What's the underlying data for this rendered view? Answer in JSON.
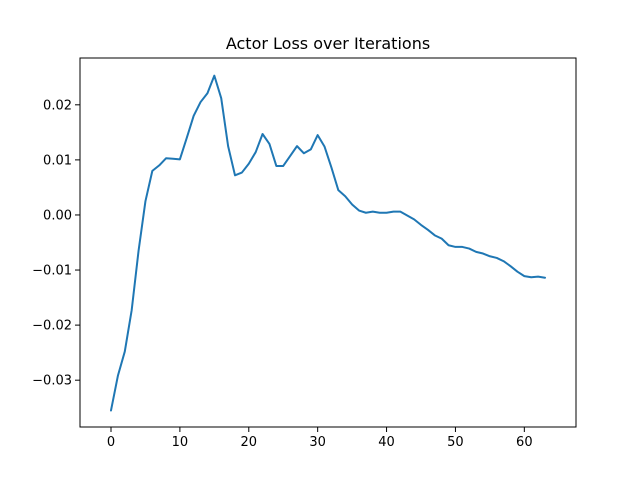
{
  "chart_data": {
    "type": "line",
    "title": "Actor Loss over Iterations",
    "xlabel": "",
    "ylabel": "",
    "xlim": [
      -4.5,
      67.5
    ],
    "ylim": [
      -0.0385,
      0.0285
    ],
    "xticks": [
      0,
      10,
      20,
      30,
      40,
      50,
      60
    ],
    "yticks": [
      -0.03,
      -0.02,
      -0.01,
      0.0,
      0.01,
      0.02
    ],
    "ytick_labels": [
      "−0.03",
      "−0.02",
      "−0.01",
      "0.00",
      "0.01",
      "0.02"
    ],
    "grid": false,
    "colors": {
      "line": "#1f77b4"
    },
    "series": [
      {
        "x": [
          0,
          1,
          2,
          3,
          4,
          5,
          6,
          7,
          8,
          9,
          10,
          11,
          12,
          13,
          14,
          15,
          16,
          17,
          18,
          19,
          20,
          21,
          22,
          23,
          24,
          25,
          26,
          27,
          28,
          29,
          30,
          31,
          32,
          33,
          34,
          35,
          36,
          37,
          38,
          39,
          40,
          41,
          42,
          43,
          44,
          45,
          46,
          47,
          48,
          49,
          50,
          51,
          52,
          53,
          54,
          55,
          56,
          57,
          58,
          59,
          60,
          61,
          62,
          63
        ],
        "y": [
          -0.0355,
          -0.0292,
          -0.0248,
          -0.0173,
          -0.0065,
          0.0025,
          0.008,
          0.009,
          0.0103,
          0.0102,
          0.0101,
          0.014,
          0.018,
          0.0205,
          0.0221,
          0.0253,
          0.0212,
          0.0125,
          0.0072,
          0.0077,
          0.0093,
          0.0114,
          0.0147,
          0.0129,
          0.0089,
          0.0089,
          0.0107,
          0.0125,
          0.0112,
          0.0119,
          0.0145,
          0.0124,
          0.0086,
          0.0045,
          0.0034,
          0.0019,
          0.0008,
          0.0004,
          0.0006,
          0.0004,
          0.0004,
          0.0006,
          0.0006,
          -0.0001,
          -0.0008,
          -0.0018,
          -0.0027,
          -0.0037,
          -0.0043,
          -0.0055,
          -0.0058,
          -0.0058,
          -0.0061,
          -0.0067,
          -0.007,
          -0.0075,
          -0.0078,
          -0.0084,
          -0.0093,
          -0.0103,
          -0.0111,
          -0.0113,
          -0.0112,
          -0.0114
        ]
      }
    ]
  }
}
